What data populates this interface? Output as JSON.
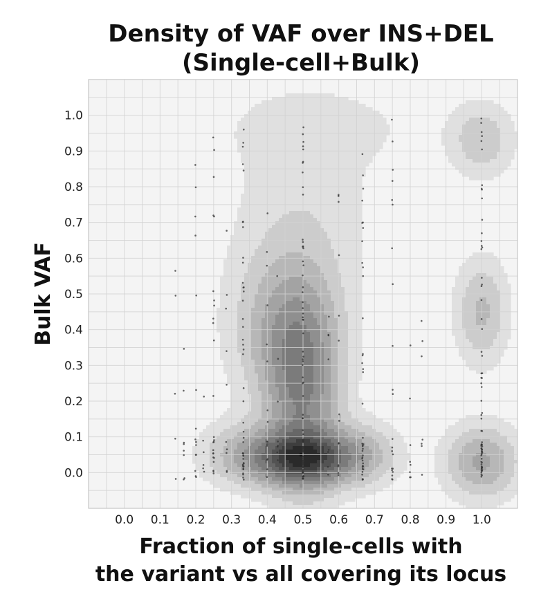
{
  "chart_data": {
    "type": "heatmap",
    "subtype": "kde-density-with-scatter",
    "title_lines": [
      "Density of VAF over INS+DEL",
      "(Single-cell+Bulk)"
    ],
    "xlabel_lines": [
      "Fraction of single-cells with",
      "the variant vs all covering its locus"
    ],
    "ylabel": "Bulk VAF",
    "xticks": [
      "0.0",
      "0.1",
      "0.2",
      "0.3",
      "0.4",
      "0.5",
      "0.6",
      "0.7",
      "0.8",
      "0.9",
      "1.0"
    ],
    "yticks": [
      "0.0",
      "0.1",
      "0.2",
      "0.3",
      "0.4",
      "0.5",
      "0.6",
      "0.7",
      "0.8",
      "0.9",
      "1.0"
    ],
    "xlim": [
      -0.1,
      1.1
    ],
    "ylim": [
      -0.1,
      1.1
    ],
    "grid": true,
    "colormap": "greys",
    "colors": {
      "plot_background": "#f4f4f4",
      "grid": "#d2d2d2",
      "point": "#333333"
    },
    "density_peaks": [
      {
        "x": 0.5,
        "y": 0.04,
        "sx": 0.09,
        "sy": 0.05,
        "weight": 1.0
      },
      {
        "x": 0.5,
        "y": 0.22,
        "sx": 0.07,
        "sy": 0.18,
        "weight": 0.55
      },
      {
        "x": 0.45,
        "y": 0.4,
        "sx": 0.1,
        "sy": 0.15,
        "weight": 0.35
      },
      {
        "x": 0.5,
        "y": 0.72,
        "sx": 0.14,
        "sy": 0.2,
        "weight": 0.13
      },
      {
        "x": 0.33,
        "y": 0.05,
        "sx": 0.08,
        "sy": 0.06,
        "weight": 0.3
      },
      {
        "x": 0.67,
        "y": 0.05,
        "sx": 0.07,
        "sy": 0.06,
        "weight": 0.3
      },
      {
        "x": 1.0,
        "y": 0.03,
        "sx": 0.07,
        "sy": 0.07,
        "weight": 0.42
      },
      {
        "x": 1.0,
        "y": 0.45,
        "sx": 0.05,
        "sy": 0.1,
        "weight": 0.3
      },
      {
        "x": 1.0,
        "y": 0.93,
        "sx": 0.06,
        "sy": 0.07,
        "weight": 0.25
      },
      {
        "x": 0.55,
        "y": 0.97,
        "sx": 0.22,
        "sy": 0.08,
        "weight": 0.08
      }
    ],
    "point_columns": [
      {
        "x": 0.5,
        "count": 90,
        "ymin": -0.02,
        "ymax": 1.0
      },
      {
        "x": 0.333,
        "count": 45,
        "ymin": -0.02,
        "ymax": 1.0
      },
      {
        "x": 0.667,
        "count": 40,
        "ymin": -0.02,
        "ymax": 1.0
      },
      {
        "x": 1.0,
        "count": 70,
        "ymin": -0.02,
        "ymax": 1.0
      },
      {
        "x": 0.25,
        "count": 25,
        "ymin": -0.02,
        "ymax": 1.0
      },
      {
        "x": 0.75,
        "count": 22,
        "ymin": -0.02,
        "ymax": 1.0
      },
      {
        "x": 0.2,
        "count": 15,
        "ymin": -0.02,
        "ymax": 0.9
      },
      {
        "x": 0.4,
        "count": 16,
        "ymin": -0.02,
        "ymax": 0.8
      },
      {
        "x": 0.6,
        "count": 14,
        "ymin": -0.02,
        "ymax": 0.8
      },
      {
        "x": 0.286,
        "count": 10,
        "ymin": -0.02,
        "ymax": 0.7
      },
      {
        "x": 0.429,
        "count": 8,
        "ymin": -0.02,
        "ymax": 0.6
      },
      {
        "x": 0.571,
        "count": 8,
        "ymin": -0.02,
        "ymax": 0.6
      },
      {
        "x": 0.167,
        "count": 8,
        "ymin": -0.02,
        "ymax": 0.4
      },
      {
        "x": 0.8,
        "count": 8,
        "ymin": -0.02,
        "ymax": 0.6
      },
      {
        "x": 0.833,
        "count": 7,
        "ymin": -0.02,
        "ymax": 0.5
      },
      {
        "x": 0.222,
        "count": 6,
        "ymin": -0.02,
        "ymax": 0.5
      },
      {
        "x": 0.143,
        "count": 5,
        "ymin": -0.02,
        "ymax": 0.8
      }
    ]
  }
}
